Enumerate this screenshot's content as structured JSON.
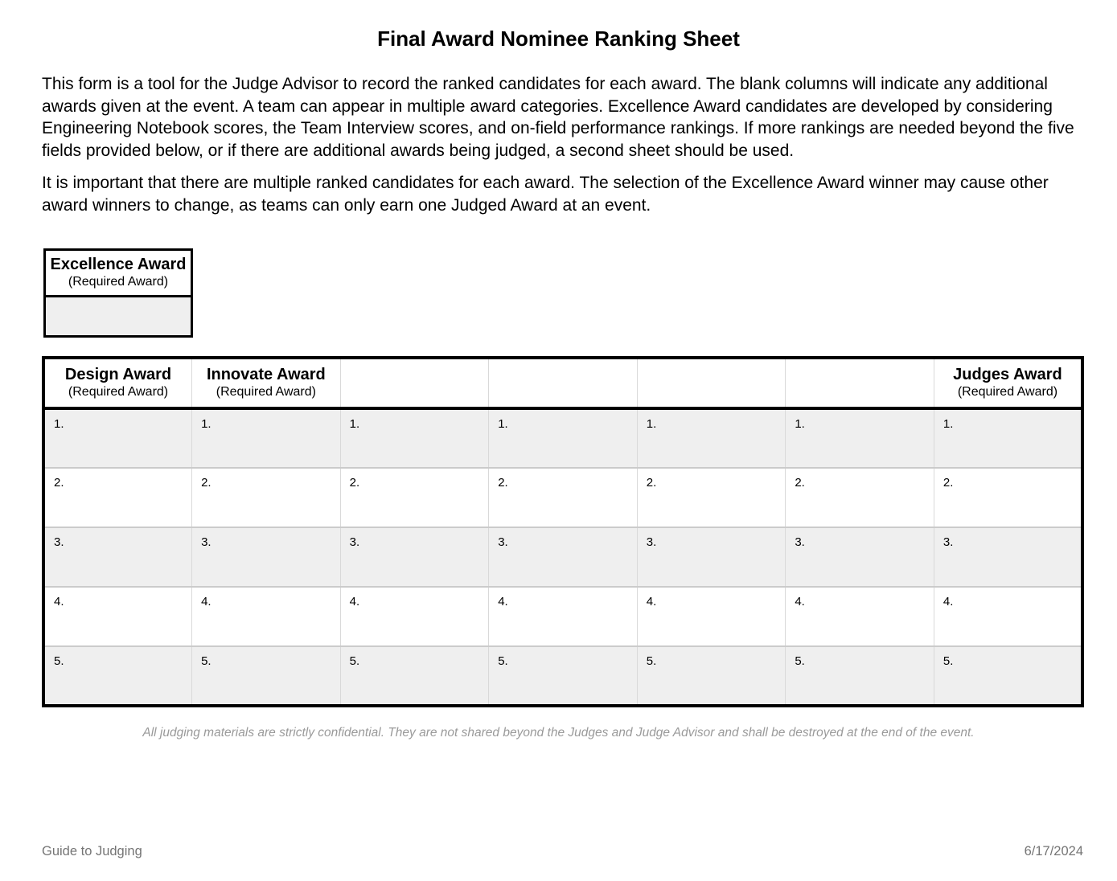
{
  "document": {
    "title": "Final Award Nominee Ranking Sheet",
    "paragraphs": [
      "This form is a tool for the Judge Advisor to record the ranked candidates for each award. The blank columns will indicate any additional awards given at the event. A team can appear in multiple award categories. Excellence Award candidates are developed by considering Engineering Notebook scores, the Team Interview scores, and on-field performance rankings. If more rankings are needed beyond the five fields provided below, or if there are additional awards being judged, a second sheet should be used.",
      "It is important that there are multiple ranked candidates for each award. The selection of the Excellence Award winner may cause other award winners to change, as teams can only earn one Judged Award at an event."
    ]
  },
  "excellence_box": {
    "title": "Excellence Award",
    "subtitle": "(Required Award)",
    "value": ""
  },
  "ranking_table": {
    "columns": [
      {
        "title": "Design Award",
        "subtitle": "(Required Award)"
      },
      {
        "title": "Innovate Award",
        "subtitle": "(Required Award)"
      },
      {
        "title": "",
        "subtitle": ""
      },
      {
        "title": "",
        "subtitle": ""
      },
      {
        "title": "",
        "subtitle": ""
      },
      {
        "title": "",
        "subtitle": ""
      },
      {
        "title": "Judges Award",
        "subtitle": "(Required Award)"
      }
    ],
    "row_numbers": [
      "1.",
      "2.",
      "3.",
      "4.",
      "5."
    ]
  },
  "confidential_note": "All judging materials are strictly confidential. They are not shared beyond the Judges and Judge Advisor and shall be destroyed at the end of the event.",
  "footer": {
    "left": "Guide to Judging",
    "right": "6/17/2024"
  },
  "colors": {
    "shaded_row": "#efefef",
    "grid_line": "#d9d9d9",
    "row_divider": "#cbcbcb",
    "table_border": "#000000",
    "note_text": "#9a9a9a",
    "footer_text": "#757575"
  }
}
